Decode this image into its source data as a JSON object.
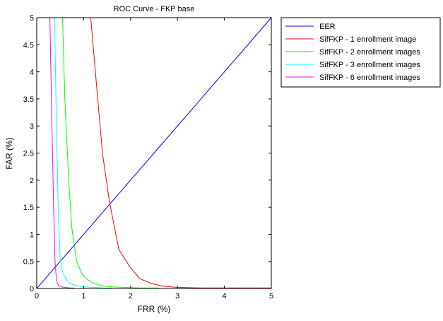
{
  "chart_data": {
    "type": "line",
    "title": "ROC Curve - FKP base",
    "xlabel": "FRR (%)",
    "ylabel": "FAR (%)",
    "xlim": [
      0,
      5
    ],
    "ylim": [
      0,
      5
    ],
    "xticks": [
      "0",
      "1",
      "2",
      "3",
      "4",
      "5"
    ],
    "yticks": [
      "0",
      "0.5",
      "1",
      "1.5",
      "2",
      "2.5",
      "3",
      "3.5",
      "4",
      "4.5",
      "5"
    ],
    "grid": false,
    "legend_position": "outside-top-right",
    "series": [
      {
        "name": "EER",
        "color": "#0000ff",
        "x": [
          0,
          5
        ],
        "y": [
          0,
          5
        ]
      },
      {
        "name": "SifFKP - 1 enrollment image",
        "color": "#ff0000",
        "x": [
          1.15,
          1.25,
          1.4,
          1.55,
          1.75,
          2.0,
          2.2,
          2.45,
          2.7,
          3.0,
          3.5,
          4.0,
          4.5,
          5.0
        ],
        "y": [
          5.0,
          4.0,
          2.5,
          1.6,
          0.72,
          0.38,
          0.18,
          0.09,
          0.04,
          0.02,
          0.01,
          0.01,
          0.01,
          0.01
        ]
      },
      {
        "name": "SifFKP - 2 enrollment images",
        "color": "#00ff00",
        "x": [
          0.55,
          0.6,
          0.68,
          0.75,
          0.85,
          0.95,
          1.05,
          1.2,
          1.4,
          1.6,
          1.9,
          2.2,
          2.5,
          2.6
        ],
        "y": [
          5.0,
          3.5,
          2.0,
          1.1,
          0.5,
          0.3,
          0.18,
          0.1,
          0.05,
          0.03,
          0.02,
          0.01,
          0.01,
          0.01
        ]
      },
      {
        "name": "SifFKP - 3 enrollment images",
        "color": "#00ffff",
        "x": [
          0.38,
          0.42,
          0.46,
          0.5,
          0.55,
          0.62,
          0.7,
          0.8,
          1.0,
          1.2,
          1.5,
          1.6
        ],
        "y": [
          5.0,
          3.0,
          1.4,
          0.55,
          0.3,
          0.18,
          0.1,
          0.06,
          0.03,
          0.02,
          0.01,
          0.01
        ]
      },
      {
        "name": "SifFKP - 6 enrollment images",
        "color": "#ff00ff",
        "x": [
          0.28,
          0.32,
          0.36,
          0.39,
          0.42,
          0.46,
          0.52,
          0.6,
          0.7,
          0.8
        ],
        "y": [
          5.0,
          3.2,
          1.5,
          0.5,
          0.15,
          0.06,
          0.03,
          0.02,
          0.01,
          0.01
        ]
      }
    ]
  }
}
